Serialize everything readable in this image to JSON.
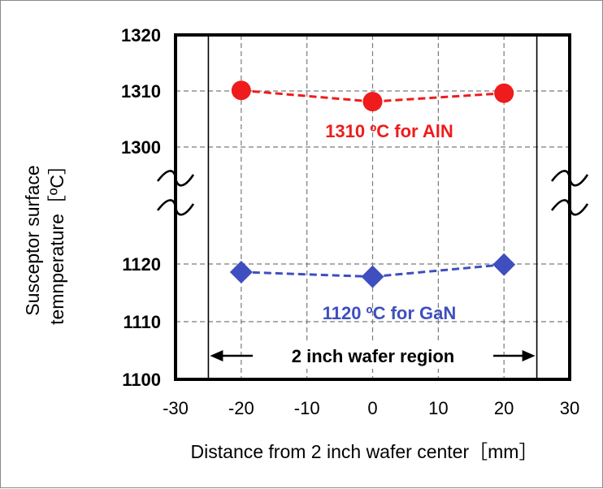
{
  "chart_data": {
    "type": "scatter",
    "xlabel": "Distance from 2 inch wafer center［mm］",
    "ylabel_line1": "Susceptor surface",
    "ylabel_line2": "temnperature［ºC］",
    "x_ticks": [
      "-30",
      "-20",
      "-10",
      "0",
      "10",
      "20",
      "30"
    ],
    "xlim": [
      -30,
      30
    ],
    "y_axis_broken": true,
    "y_ticks": [
      "1100",
      "1110",
      "1120",
      "1300",
      "1310",
      "1320"
    ],
    "grid": true,
    "series": [
      {
        "marker": "circle",
        "color": "#ee1c1c",
        "x": [
          -20,
          0,
          20
        ],
        "y": [
          1310.1,
          1308.1,
          1309.6
        ]
      },
      {
        "marker": "diamond",
        "color": "#3f4fbf",
        "x": [
          -20,
          0,
          20
        ],
        "y": [
          1118.6,
          1117.8,
          1119.9
        ]
      }
    ],
    "annotations": {
      "aln_label": "1310 ºC for AlN",
      "gan_label": "1120 ºC for GaN",
      "region_label": "2 inch wafer region",
      "region_x": [
        -25,
        25
      ]
    }
  }
}
